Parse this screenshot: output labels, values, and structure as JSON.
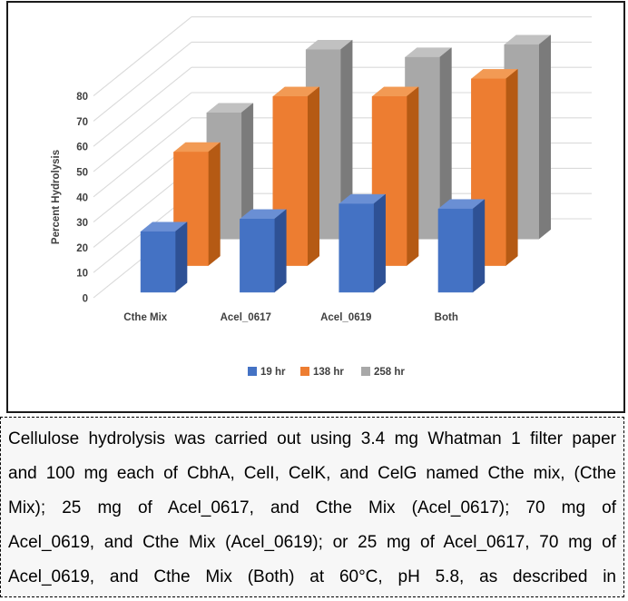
{
  "chart_data": {
    "type": "bar",
    "variant": "3d-clustered-column",
    "title": "",
    "xlabel": "",
    "ylabel": "Percent Hydrolysis",
    "categories": [
      "Cthe Mix",
      "Acel_0617",
      "Acel_0619",
      "Both"
    ],
    "series": [
      {
        "name": "19 hr",
        "values": [
          24,
          29,
          35,
          33
        ],
        "color_front": "#4472C4",
        "color_top": "#6A8FD4",
        "color_side": "#2E5195"
      },
      {
        "name": "138 hr",
        "values": [
          45,
          67,
          67,
          74
        ],
        "color_front": "#ED7D31",
        "color_top": "#F29A54",
        "color_side": "#B55A14"
      },
      {
        "name": "258 hr",
        "values": [
          50,
          75,
          72,
          77
        ],
        "color_front": "#A8A8A8",
        "color_top": "#C1C1C1",
        "color_side": "#7B7B7B"
      }
    ],
    "ylim": [
      0,
      80
    ],
    "yticks": [
      0,
      10,
      20,
      30,
      40,
      50,
      60,
      70,
      80
    ],
    "grid": true,
    "grid_color": "#DADADA",
    "legend_position": "bottom"
  },
  "caption": {
    "lines": [
      "Cellulose hydrolysis was carried out using 3.4 mg Whatman 1 filter paper",
      "and 100 mg each of CbhA, CelI, CelK, and CelG named Cthe mix, (Cthe",
      "Mix); 25 mg of Acel_0617, and Cthe Mix (Acel_0617); 70 mg of",
      "Acel_0619, and Cthe Mix (Acel_0619); or 25 mg of Acel_0617, 70 mg of",
      "Acel_0619, and Cthe Mix (Both) at 60°C, pH 5.8, as described in"
    ]
  }
}
